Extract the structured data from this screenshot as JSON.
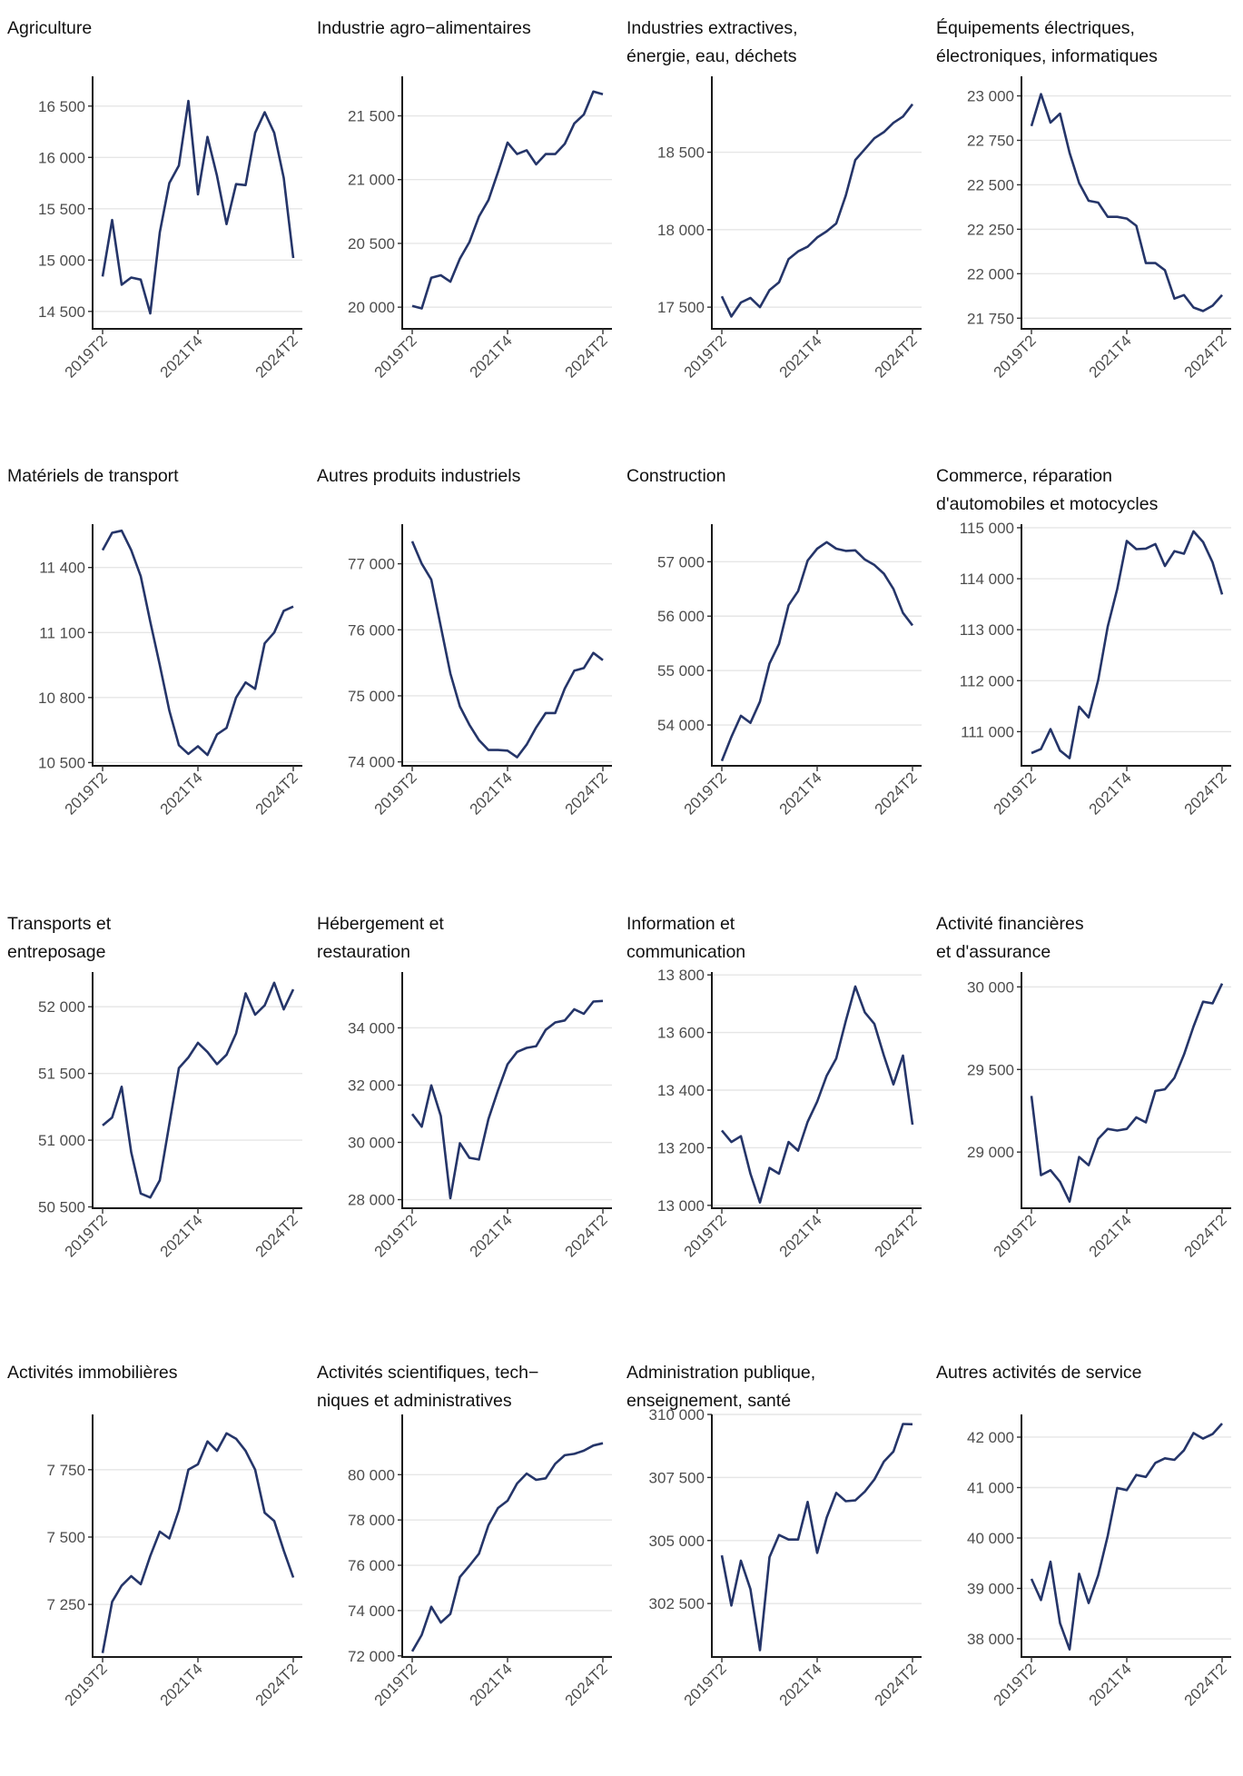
{
  "chart_data": [
    {
      "type": "line",
      "title": "Agriculture",
      "x_ticks": [
        "2019T2",
        "2021T4",
        "2024T2"
      ],
      "ylim": [
        14330,
        16790
      ],
      "y_ticks": [
        {
          "value": 14500,
          "label": "14 500"
        },
        {
          "value": 15000,
          "label": "15 000"
        },
        {
          "value": 15500,
          "label": "15 500"
        },
        {
          "value": 16000,
          "label": "16 000"
        },
        {
          "value": 16500,
          "label": "16 500"
        }
      ],
      "series": [
        {
          "color": "#253569",
          "values": [
            14840,
            15390,
            14760,
            14830,
            14810,
            14480,
            15270,
            15750,
            15920,
            16550,
            15640,
            16200,
            15820,
            15350,
            15740,
            15730,
            16240,
            16440,
            16240,
            15800,
            15020
          ]
        }
      ]
    },
    {
      "type": "line",
      "title": "Industrie agro−alimentaires",
      "x_ticks": [
        "2019T2",
        "2021T4",
        "2024T2"
      ],
      "ylim": [
        19830,
        21810
      ],
      "y_ticks": [
        {
          "value": 20000,
          "label": "20 000"
        },
        {
          "value": 20500,
          "label": "20 500"
        },
        {
          "value": 21000,
          "label": "21 000"
        },
        {
          "value": 21500,
          "label": "21 500"
        }
      ],
      "series": [
        {
          "color": "#253569",
          "values": [
            20010,
            19990,
            20230,
            20250,
            20200,
            20380,
            20510,
            20710,
            20840,
            21060,
            21290,
            21200,
            21230,
            21120,
            21200,
            21200,
            21280,
            21440,
            21510,
            21690,
            21670
          ]
        }
      ]
    },
    {
      "type": "line",
      "title": "Industries extractives,\nénergie, eau, déchets",
      "x_ticks": [
        "2019T2",
        "2021T4",
        "2024T2"
      ],
      "ylim": [
        17360,
        18990
      ],
      "y_ticks": [
        {
          "value": 17500,
          "label": "17 500"
        },
        {
          "value": 18000,
          "label": "18 000"
        },
        {
          "value": 18500,
          "label": "18 500"
        }
      ],
      "series": [
        {
          "color": "#253569",
          "values": [
            17570,
            17440,
            17530,
            17560,
            17500,
            17610,
            17660,
            17810,
            17860,
            17890,
            17950,
            17990,
            18040,
            18220,
            18450,
            18520,
            18590,
            18630,
            18690,
            18730,
            18810
          ]
        }
      ]
    },
    {
      "type": "line",
      "title": "Équipements électriques,\nélectroniques, informatiques",
      "x_ticks": [
        "2019T2",
        "2021T4",
        "2024T2"
      ],
      "ylim": [
        21690,
        23110
      ],
      "y_ticks": [
        {
          "value": 21750,
          "label": "21 750"
        },
        {
          "value": 22000,
          "label": "22 000"
        },
        {
          "value": 22250,
          "label": "22 250"
        },
        {
          "value": 22500,
          "label": "22 500"
        },
        {
          "value": 22750,
          "label": "22 750"
        },
        {
          "value": 23000,
          "label": "23 000"
        }
      ],
      "series": [
        {
          "color": "#253569",
          "values": [
            22830,
            23010,
            22850,
            22900,
            22680,
            22510,
            22410,
            22400,
            22320,
            22320,
            22310,
            22270,
            22060,
            22060,
            22020,
            21860,
            21880,
            21810,
            21790,
            21820,
            21880
          ]
        }
      ]
    },
    {
      "type": "line",
      "title": "Matériels de transport",
      "x_ticks": [
        "2019T2",
        "2021T4",
        "2024T2"
      ],
      "ylim": [
        10485,
        11600
      ],
      "y_ticks": [
        {
          "value": 10500,
          "label": "10 500"
        },
        {
          "value": 10800,
          "label": "10 800"
        },
        {
          "value": 11100,
          "label": "11 100"
        },
        {
          "value": 11400,
          "label": "11 400"
        }
      ],
      "series": [
        {
          "color": "#253569",
          "values": [
            11480,
            11560,
            11570,
            11480,
            11360,
            11150,
            10950,
            10740,
            10580,
            10540,
            10575,
            10535,
            10630,
            10660,
            10800,
            10870,
            10840,
            11050,
            11100,
            11200,
            11220
          ]
        }
      ]
    },
    {
      "type": "line",
      "title": "Autres produits industriels",
      "x_ticks": [
        "2019T2",
        "2021T4",
        "2024T2"
      ],
      "ylim": [
        73940,
        77600
      ],
      "y_ticks": [
        {
          "value": 74000,
          "label": "74 000"
        },
        {
          "value": 75000,
          "label": "75 000"
        },
        {
          "value": 76000,
          "label": "76 000"
        },
        {
          "value": 77000,
          "label": "77 000"
        }
      ],
      "series": [
        {
          "color": "#253569",
          "values": [
            77340,
            77000,
            76760,
            76050,
            75340,
            74840,
            74560,
            74330,
            74180,
            74180,
            74170,
            74070,
            74260,
            74520,
            74740,
            74740,
            75110,
            75380,
            75420,
            75650,
            75540
          ]
        }
      ]
    },
    {
      "type": "line",
      "title": "Construction",
      "x_ticks": [
        "2019T2",
        "2021T4",
        "2024T2"
      ],
      "ylim": [
        53250,
        57690
      ],
      "y_ticks": [
        {
          "value": 54000,
          "label": "54 000"
        },
        {
          "value": 55000,
          "label": "55 000"
        },
        {
          "value": 56000,
          "label": "56 000"
        },
        {
          "value": 57000,
          "label": "57 000"
        }
      ],
      "series": [
        {
          "color": "#253569",
          "values": [
            53340,
            53780,
            54170,
            54040,
            54430,
            55130,
            55490,
            56200,
            56460,
            57020,
            57240,
            57360,
            57240,
            57200,
            57210,
            57040,
            56940,
            56780,
            56500,
            56060,
            55830
          ]
        }
      ]
    },
    {
      "type": "line",
      "title": "Commerce, réparation\nd'automobiles et motocycles",
      "x_ticks": [
        "2019T2",
        "2021T4",
        "2024T2"
      ],
      "ylim": [
        110330,
        115070
      ],
      "y_ticks": [
        {
          "value": 111000,
          "label": "111 000"
        },
        {
          "value": 112000,
          "label": "112 000"
        },
        {
          "value": 113000,
          "label": "113 000"
        },
        {
          "value": 114000,
          "label": "114 000"
        },
        {
          "value": 115000,
          "label": "115 000"
        }
      ],
      "series": [
        {
          "color": "#253569",
          "values": [
            110580,
            110660,
            111050,
            110630,
            110480,
            111490,
            111280,
            112010,
            113060,
            113800,
            114740,
            114580,
            114590,
            114680,
            114250,
            114540,
            114490,
            114930,
            114720,
            114320,
            113690
          ]
        }
      ]
    },
    {
      "type": "line",
      "title": "Transports et\nentreposage",
      "x_ticks": [
        "2019T2",
        "2021T4",
        "2024T2"
      ],
      "ylim": [
        50490,
        52260
      ],
      "y_ticks": [
        {
          "value": 50500,
          "label": "50 500"
        },
        {
          "value": 51000,
          "label": "51 000"
        },
        {
          "value": 51500,
          "label": "51 500"
        },
        {
          "value": 52000,
          "label": "52 000"
        }
      ],
      "series": [
        {
          "color": "#253569",
          "values": [
            51110,
            51170,
            51400,
            50910,
            50600,
            50570,
            50700,
            51120,
            51540,
            51620,
            51730,
            51660,
            51570,
            51640,
            51800,
            52100,
            51940,
            52010,
            52180,
            51980,
            52130
          ]
        }
      ]
    },
    {
      "type": "line",
      "title": "Hébergement et\nrestauration",
      "x_ticks": [
        "2019T2",
        "2021T4",
        "2024T2"
      ],
      "ylim": [
        27700,
        35950
      ],
      "y_ticks": [
        {
          "value": 28000,
          "label": "28 000"
        },
        {
          "value": 30000,
          "label": "30 000"
        },
        {
          "value": 32000,
          "label": "32 000"
        },
        {
          "value": 34000,
          "label": "34 000"
        }
      ],
      "series": [
        {
          "color": "#253569",
          "values": [
            30990,
            30550,
            31990,
            30920,
            28050,
            29970,
            29460,
            29400,
            30820,
            31820,
            32730,
            33160,
            33300,
            33360,
            33930,
            34190,
            34260,
            34650,
            34490,
            34920,
            34940
          ]
        }
      ]
    },
    {
      "type": "line",
      "title": "Information et\ncommunication",
      "x_ticks": [
        "2019T2",
        "2021T4",
        "2024T2"
      ],
      "ylim": [
        12990,
        13810
      ],
      "y_ticks": [
        {
          "value": 13000,
          "label": "13 000"
        },
        {
          "value": 13200,
          "label": "13 200"
        },
        {
          "value": 13400,
          "label": "13 400"
        },
        {
          "value": 13600,
          "label": "13 600"
        },
        {
          "value": 13800,
          "label": "13 800"
        }
      ],
      "series": [
        {
          "color": "#253569",
          "values": [
            13260,
            13220,
            13240,
            13110,
            13010,
            13130,
            13110,
            13220,
            13190,
            13290,
            13360,
            13450,
            13510,
            13640,
            13760,
            13670,
            13630,
            13520,
            13420,
            13520,
            13280
          ]
        }
      ]
    },
    {
      "type": "line",
      "title": "Activité financières\net d'assurance",
      "x_ticks": [
        "2019T2",
        "2021T4",
        "2024T2"
      ],
      "ylim": [
        28660,
        30090
      ],
      "y_ticks": [
        {
          "value": 29000,
          "label": "29 000"
        },
        {
          "value": 29500,
          "label": "29 500"
        },
        {
          "value": 30000,
          "label": "30 000"
        }
      ],
      "series": [
        {
          "color": "#253569",
          "values": [
            29340,
            28860,
            28890,
            28820,
            28700,
            28970,
            28920,
            29080,
            29140,
            29130,
            29140,
            29210,
            29180,
            29370,
            29380,
            29450,
            29590,
            29760,
            29910,
            29900,
            30020
          ]
        }
      ]
    },
    {
      "type": "line",
      "title": "Activités immobilières",
      "x_ticks": [
        "2019T2",
        "2021T4",
        "2024T2"
      ],
      "ylim": [
        7055,
        7955
      ],
      "y_ticks": [
        {
          "value": 7250,
          "label": "7 250"
        },
        {
          "value": 7500,
          "label": "7 500"
        },
        {
          "value": 7750,
          "label": "7 750"
        }
      ],
      "series": [
        {
          "color": "#253569",
          "values": [
            7070,
            7260,
            7320,
            7355,
            7325,
            7430,
            7520,
            7495,
            7600,
            7750,
            7770,
            7855,
            7820,
            7885,
            7865,
            7820,
            7750,
            7590,
            7560,
            7450,
            7350
          ]
        }
      ]
    },
    {
      "type": "line",
      "title": "Activités scientifiques, tech−\nniques et administratives",
      "x_ticks": [
        "2019T2",
        "2021T4",
        "2024T2"
      ],
      "ylim": [
        71950,
        82660
      ],
      "y_ticks": [
        {
          "value": 72000,
          "label": "72 000"
        },
        {
          "value": 74000,
          "label": "74 000"
        },
        {
          "value": 76000,
          "label": "76 000"
        },
        {
          "value": 78000,
          "label": "78 000"
        },
        {
          "value": 80000,
          "label": "80 000"
        }
      ],
      "series": [
        {
          "color": "#253569",
          "values": [
            72200,
            72930,
            74170,
            73470,
            73850,
            75480,
            75980,
            76510,
            77770,
            78530,
            78850,
            79610,
            80050,
            79770,
            79840,
            80480,
            80860,
            80920,
            81060,
            81290,
            81390
          ]
        }
      ]
    },
    {
      "type": "line",
      "title": "Administration publique,\nenseignement, santé",
      "x_ticks": [
        "2019T2",
        "2021T4",
        "2024T2"
      ],
      "ylim": [
        300380,
        310000
      ],
      "y_ticks": [
        {
          "value": 302500,
          "label": "302 500"
        },
        {
          "value": 305000,
          "label": "305 000"
        },
        {
          "value": 307500,
          "label": "307 500"
        },
        {
          "value": 310000,
          "label": "310 000"
        }
      ],
      "series": [
        {
          "color": "#253569",
          "values": [
            304410,
            302420,
            304200,
            303070,
            300650,
            304340,
            305220,
            305040,
            305040,
            306530,
            304510,
            305910,
            306890,
            306560,
            306590,
            306940,
            307420,
            308130,
            308530,
            309620,
            309610
          ]
        }
      ]
    },
    {
      "type": "line",
      "title": "Autres activités de service",
      "x_ticks": [
        "2019T2",
        "2021T4",
        "2024T2"
      ],
      "ylim": [
        37640,
        42450
      ],
      "y_ticks": [
        {
          "value": 38000,
          "label": "38 000"
        },
        {
          "value": 39000,
          "label": "39 000"
        },
        {
          "value": 40000,
          "label": "40 000"
        },
        {
          "value": 41000,
          "label": "41 000"
        },
        {
          "value": 42000,
          "label": "42 000"
        }
      ],
      "series": [
        {
          "color": "#253569",
          "values": [
            39190,
            38770,
            39530,
            38310,
            37790,
            39290,
            38710,
            39260,
            40040,
            40990,
            40950,
            41250,
            41210,
            41490,
            41580,
            41550,
            41740,
            42080,
            41970,
            42060,
            42270
          ]
        }
      ]
    }
  ]
}
